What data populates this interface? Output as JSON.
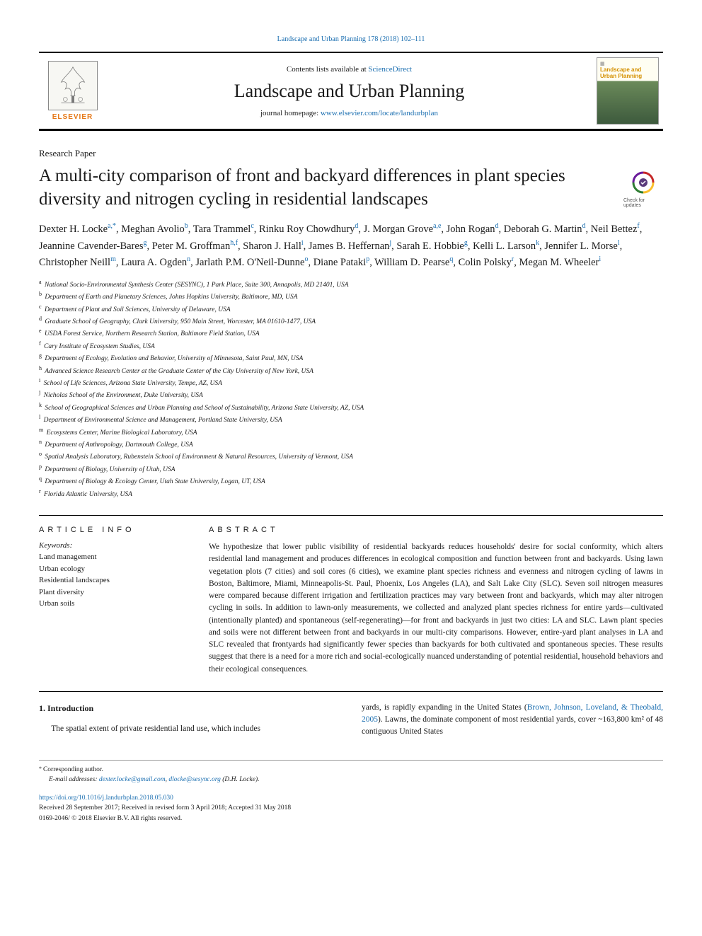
{
  "citation": "Landscape and Urban Planning 178 (2018) 102–111",
  "header": {
    "contents_prefix": "Contents lists available at ",
    "contents_link": "ScienceDirect",
    "journal_name": "Landscape and Urban Planning",
    "homepage_prefix": "journal homepage: ",
    "homepage_link": "www.elsevier.com/locate/landurbplan",
    "elsevier_label": "ELSEVIER",
    "cover_line1": "Landscape and",
    "cover_line2": "Urban Planning"
  },
  "paper_type": "Research Paper",
  "title": "A multi-city comparison of front and backyard differences in plant species diversity and nitrogen cycling in residential landscapes",
  "check_updates_label": "Check for updates",
  "authors_html": "Dexter H. Locke<sup>a,*</sup>, Meghan Avolio<sup>b</sup>, Tara Trammel<sup>c</sup>, Rinku Roy Chowdhury<sup>d</sup>, J. Morgan Grove<sup>a,e</sup>, John Rogan<sup>d</sup>, Deborah G. Martin<sup>d</sup>, Neil Bettez<sup>f</sup>, Jeannine Cavender-Bares<sup>g</sup>, Peter M. Groffman<sup>h,f</sup>, Sharon J. Hall<sup>i</sup>, James B. Heffernan<sup>j</sup>, Sarah E. Hobbie<sup>g</sup>, Kelli L. Larson<sup>k</sup>, Jennifer L. Morse<sup>l</sup>, Christopher Neill<sup>m</sup>, Laura A. Ogden<sup>n</sup>, Jarlath P.M. O'Neil-Dunne<sup>o</sup>, Diane Pataki<sup>p</sup>, William D. Pearse<sup>q</sup>, Colin Polsky<sup>r</sup>, Megan M. Wheeler<sup>i</sup>",
  "affiliations": [
    {
      "sup": "a",
      "text": "National Socio-Environmental Synthesis Center (SESYNC), 1 Park Place, Suite 300, Annapolis, MD 21401, USA"
    },
    {
      "sup": "b",
      "text": "Department of Earth and Planetary Sciences, Johns Hopkins University, Baltimore, MD, USA"
    },
    {
      "sup": "c",
      "text": "Department of Plant and Soil Sciences, University of Delaware, USA"
    },
    {
      "sup": "d",
      "text": "Graduate School of Geography, Clark University, 950 Main Street, Worcester, MA 01610-1477, USA"
    },
    {
      "sup": "e",
      "text": "USDA Forest Service, Northern Research Station, Baltimore Field Station, USA"
    },
    {
      "sup": "f",
      "text": "Cary Institute of Ecosystem Studies, USA"
    },
    {
      "sup": "g",
      "text": "Department of Ecology, Evolution and Behavior, University of Minnesota, Saint Paul, MN, USA"
    },
    {
      "sup": "h",
      "text": "Advanced Science Research Center at the Graduate Center of the City University of New York, USA"
    },
    {
      "sup": "i",
      "text": "School of Life Sciences, Arizona State University, Tempe, AZ, USA"
    },
    {
      "sup": "j",
      "text": "Nicholas School of the Environment, Duke University, USA"
    },
    {
      "sup": "k",
      "text": "School of Geographical Sciences and Urban Planning and School of Sustainability, Arizona State University, AZ, USA"
    },
    {
      "sup": "l",
      "text": "Department of Environmental Science and Management, Portland State University, USA"
    },
    {
      "sup": "m",
      "text": "Ecosystems Center, Marine Biological Laboratory, USA"
    },
    {
      "sup": "n",
      "text": "Department of Anthropology, Dartmouth College, USA"
    },
    {
      "sup": "o",
      "text": "Spatial Analysis Laboratory, Rubenstein School of Environment & Natural Resources, University of Vermont, USA"
    },
    {
      "sup": "p",
      "text": "Department of Biology, University of Utah, USA"
    },
    {
      "sup": "q",
      "text": "Department of Biology & Ecology Center, Utah State University, Logan, UT, USA"
    },
    {
      "sup": "r",
      "text": "Florida Atlantic University, USA"
    }
  ],
  "article_info_head": "ARTICLE INFO",
  "abstract_head": "ABSTRACT",
  "keywords_label": "Keywords:",
  "keywords": [
    "Land management",
    "Urban ecology",
    "Residential landscapes",
    "Plant diversity",
    "Urban soils"
  ],
  "abstract": "We hypothesize that lower public visibility of residential backyards reduces households' desire for social conformity, which alters residential land management and produces differences in ecological composition and function between front and backyards. Using lawn vegetation plots (7 cities) and soil cores (6 cities), we examine plant species richness and evenness and nitrogen cycling of lawns in Boston, Baltimore, Miami, Minneapolis-St. Paul, Phoenix, Los Angeles (LA), and Salt Lake City (SLC). Seven soil nitrogen measures were compared because different irrigation and fertilization practices may vary between front and backyards, which may alter nitrogen cycling in soils. In addition to lawn-only measurements, we collected and analyzed plant species richness for entire yards—cultivated (intentionally planted) and spontaneous (self-regenerating)—for front and backyards in just two cities: LA and SLC. Lawn plant species and soils were not different between front and backyards in our multi-city comparisons. However, entire-yard plant analyses in LA and SLC revealed that frontyards had significantly fewer species than backyards for both cultivated and spontaneous species. These results suggest that there is a need for a more rich and social-ecologically nuanced understanding of potential residential, household behaviors and their ecological consequences.",
  "intro_head": "1. Introduction",
  "intro_left": "The spatial extent of private residential land use, which includes",
  "intro_right_pre": "yards, is rapidly expanding in the United States (",
  "intro_right_link": "Brown, Johnson, Loveland, & Theobald, 2005",
  "intro_right_post": "). Lawns, the dominate component of most residential yards, cover ~163,800 km² of 48 contiguous United States",
  "footnotes": {
    "corr_marker": "*",
    "corr_text": "Corresponding author.",
    "email_label": "E-mail addresses:",
    "email1": "dexter.locke@gmail.com",
    "email_sep": ", ",
    "email2": "dlocke@sesync.org",
    "email_post": " (D.H. Locke)."
  },
  "doi": {
    "link": "https://doi.org/10.1016/j.landurbplan.2018.05.030",
    "received": "Received 28 September 2017; Received in revised form 3 April 2018; Accepted 31 May 2018",
    "copyright": "0169-2046/ © 2018 Elsevier B.V. All rights reserved."
  },
  "colors": {
    "link": "#1a6eb0",
    "elsevier_orange": "#e67817",
    "text": "#1a1a1a"
  }
}
